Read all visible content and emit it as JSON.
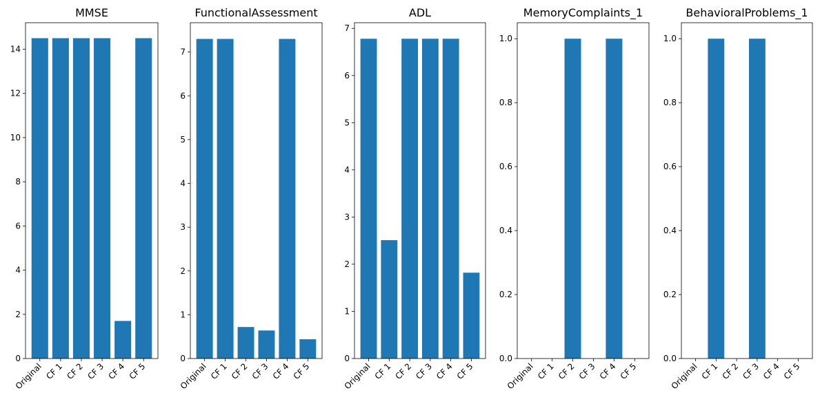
{
  "chart_data": [
    {
      "type": "bar",
      "title": "MMSE",
      "categories": [
        "Original",
        "CF 1",
        "CF 2",
        "CF 3",
        "CF 4",
        "CF 5"
      ],
      "values": [
        14.5,
        14.5,
        14.5,
        14.5,
        1.7,
        14.5
      ],
      "ylim": [
        0,
        15.2
      ],
      "yticks": [
        0,
        2,
        4,
        6,
        8,
        10,
        12,
        14
      ],
      "ytick_labels": [
        "0",
        "2",
        "4",
        "6",
        "8",
        "10",
        "12",
        "14"
      ],
      "grid": false,
      "color": "#1f77b4"
    },
    {
      "type": "bar",
      "title": "FunctionalAssessment",
      "categories": [
        "Original",
        "CF 1",
        "CF 2",
        "CF 3",
        "CF 4",
        "CF 5"
      ],
      "values": [
        7.3,
        7.3,
        0.72,
        0.64,
        7.3,
        0.44
      ],
      "ylim": [
        0,
        7.67
      ],
      "yticks": [
        0,
        1,
        2,
        3,
        4,
        5,
        6,
        7
      ],
      "ytick_labels": [
        "0",
        "1",
        "2",
        "3",
        "4",
        "5",
        "6",
        "7"
      ],
      "grid": false,
      "color": "#1f77b4"
    },
    {
      "type": "bar",
      "title": "ADL",
      "categories": [
        "Original",
        "CF 1",
        "CF 2",
        "CF 3",
        "CF 4",
        "CF 5"
      ],
      "values": [
        6.78,
        2.51,
        6.78,
        6.78,
        6.78,
        1.82
      ],
      "ylim": [
        0,
        7.12
      ],
      "yticks": [
        0,
        1,
        2,
        3,
        4,
        5,
        6,
        7
      ],
      "ytick_labels": [
        "0",
        "1",
        "2",
        "3",
        "4",
        "5",
        "6",
        "7"
      ],
      "grid": false,
      "color": "#1f77b4"
    },
    {
      "type": "bar",
      "title": "MemoryComplaints_1",
      "categories": [
        "Original",
        "CF 1",
        "CF 2",
        "CF 3",
        "CF 4",
        "CF 5"
      ],
      "values": [
        0,
        0,
        1,
        0,
        1,
        0
      ],
      "ylim": [
        0,
        1.05
      ],
      "yticks": [
        0,
        0.2,
        0.4,
        0.6,
        0.8,
        1.0
      ],
      "ytick_labels": [
        "0.0",
        "0.2",
        "0.4",
        "0.6",
        "0.8",
        "1.0"
      ],
      "grid": false,
      "color": "#1f77b4"
    },
    {
      "type": "bar",
      "title": "BehavioralProblems_1",
      "categories": [
        "Original",
        "CF 1",
        "CF 2",
        "CF 3",
        "CF 4",
        "CF 5"
      ],
      "values": [
        0,
        1,
        0,
        1,
        0,
        0
      ],
      "ylim": [
        0,
        1.05
      ],
      "yticks": [
        0,
        0.2,
        0.4,
        0.6,
        0.8,
        1.0
      ],
      "ytick_labels": [
        "0.0",
        "0.2",
        "0.4",
        "0.6",
        "0.8",
        "1.0"
      ],
      "grid": false,
      "color": "#1f77b4"
    }
  ]
}
